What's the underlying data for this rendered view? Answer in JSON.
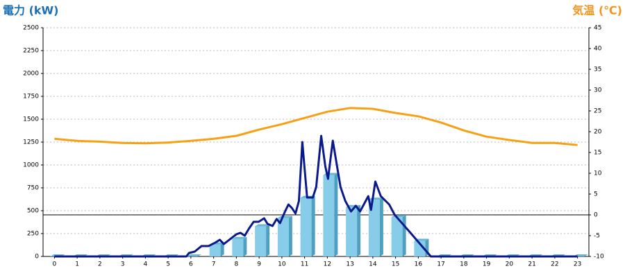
{
  "chart_data": {
    "type": "combo",
    "title": "電力 (kW)",
    "y2_title": "気温 (℃)",
    "categories": [
      "0",
      "1",
      "2",
      "3",
      "4",
      "5",
      "6",
      "7",
      "8",
      "9",
      "10",
      "11",
      "12",
      "13",
      "14",
      "15",
      "16",
      "17",
      "18",
      "19",
      "20",
      "21",
      "22",
      "23"
    ],
    "ylim": [
      0,
      2500
    ],
    "yticks": [
      0,
      250,
      500,
      750,
      1000,
      1250,
      1500,
      1750,
      2000,
      2250,
      2500
    ],
    "y2lim": [
      -10,
      45
    ],
    "y2ticks": [
      -10,
      -5,
      0,
      5,
      10,
      15,
      20,
      25,
      30,
      35,
      40,
      45
    ],
    "y2_baseline": 0,
    "grid": true,
    "series": [
      {
        "type": "bar",
        "color": "#87cdea",
        "values": [
          0,
          0,
          0,
          0,
          0,
          0,
          0,
          130,
          190,
          330,
          420,
          640,
          890,
          540,
          620,
          430,
          170,
          0,
          0,
          0,
          0,
          0,
          0,
          0
        ]
      },
      {
        "type": "line",
        "color": "#0a1a8c",
        "x": [
          0,
          5.8,
          5.92,
          6.17,
          6.47,
          6.78,
          7.08,
          7.27,
          7.45,
          7.69,
          8.0,
          8.18,
          8.37,
          8.55,
          8.76,
          8.98,
          9.22,
          9.37,
          9.59,
          9.77,
          9.92,
          10.14,
          10.29,
          10.44,
          10.6,
          10.75,
          10.9,
          11.11,
          11.36,
          11.51,
          11.73,
          11.91,
          12.03,
          12.24,
          12.58,
          12.79,
          13.04,
          13.25,
          13.44,
          13.8,
          13.92,
          14.11,
          14.35,
          14.72,
          14.96,
          15.63,
          16.55,
          23
        ],
        "values": [
          0,
          0,
          38,
          53,
          114,
          114,
          152,
          182,
          136,
          182,
          242,
          258,
          227,
          303,
          379,
          379,
          417,
          356,
          333,
          409,
          364,
          492,
          568,
          530,
          470,
          606,
          1250,
          644,
          644,
          758,
          1318,
          985,
          848,
          1265,
          758,
          606,
          492,
          553,
          492,
          659,
          508,
          818,
          659,
          568,
          455,
          265,
          0,
          0
        ]
      },
      {
        "type": "line",
        "axis": "y2",
        "color": "#f7a014",
        "values": [
          18.3,
          17.8,
          17.6,
          17.3,
          17.2,
          17.4,
          17.8,
          18.3,
          19,
          20.5,
          21.8,
          23.3,
          24.8,
          25.7,
          25.5,
          24.5,
          23.7,
          22.2,
          20.3,
          18.8,
          18,
          17.3,
          17.3,
          16.8
        ]
      }
    ]
  }
}
